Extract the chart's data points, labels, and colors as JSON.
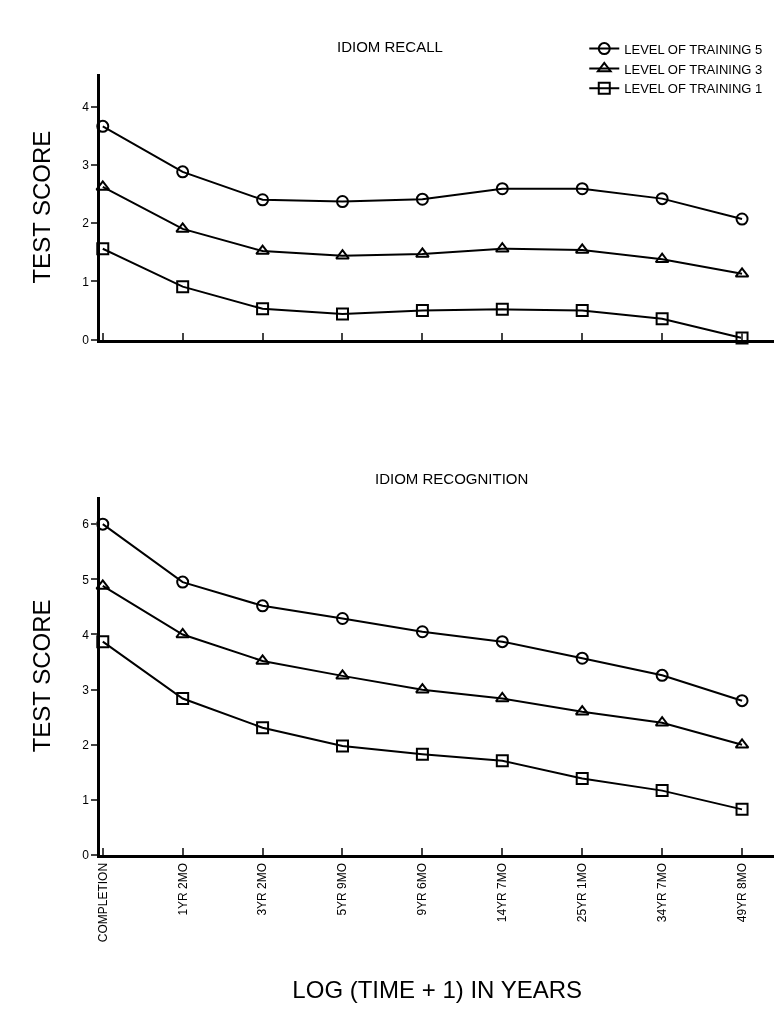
{
  "chart_data": [
    {
      "type": "line",
      "title": "IDIOM RECALL",
      "ylabel": "TEST SCORE",
      "categories": [
        null,
        null,
        null,
        null,
        null,
        null,
        null,
        null,
        null
      ],
      "ylim": [
        0,
        4.55
      ],
      "yticks": [
        0,
        1,
        2,
        3,
        4
      ],
      "tick_labels": "y",
      "legend": "top right",
      "series": [
        {
          "name": "LEVEL OF TRAINING 5",
          "color": "#000000",
          "marker": "circle",
          "values": [
            3.66,
            2.88,
            2.4,
            2.37,
            2.41,
            2.59,
            2.59,
            2.42,
            2.07
          ]
        },
        {
          "name": "LEVEL OF TRAINING 3",
          "color": "#000000",
          "marker": "triangle",
          "values": [
            2.62,
            1.9,
            1.52,
            1.44,
            1.47,
            1.56,
            1.54,
            1.38,
            1.13
          ]
        },
        {
          "name": "LEVEL OF TRAINING 1",
          "color": "#000000",
          "marker": "square",
          "values": [
            1.56,
            0.91,
            0.53,
            0.44,
            0.5,
            0.52,
            0.5,
            0.36,
            0.03
          ]
        }
      ]
    },
    {
      "type": "line",
      "title": "IDIOM RECOGNITION",
      "ylabel": "TEST SCORE",
      "xlabel": "LOG (TIME + 1) IN YEARS",
      "categories": [
        "COMPLETION",
        "1YR 2MO",
        "3YR 2MO",
        "5YR 9MO",
        "9YR 6MO",
        "14YR 7MO",
        "25YR 1MO",
        "34YR 7MO",
        "49YR 8MO"
      ],
      "ylim": [
        0,
        6.5
      ],
      "yticks": [
        0,
        1,
        2,
        3,
        4,
        5,
        6
      ],
      "series": [
        {
          "color": "#000000",
          "marker": "circle",
          "values": [
            6.0,
            4.95,
            4.52,
            4.29,
            4.05,
            3.87,
            3.57,
            3.26,
            2.8
          ]
        },
        {
          "color": "#000000",
          "marker": "triangle",
          "values": [
            4.88,
            4.0,
            3.52,
            3.25,
            3.0,
            2.84,
            2.6,
            2.4,
            2.0
          ]
        },
        {
          "color": "#000000",
          "marker": "square",
          "values": [
            3.87,
            2.84,
            2.31,
            1.98,
            1.83,
            1.71,
            1.39,
            1.17,
            0.83
          ]
        }
      ]
    }
  ]
}
